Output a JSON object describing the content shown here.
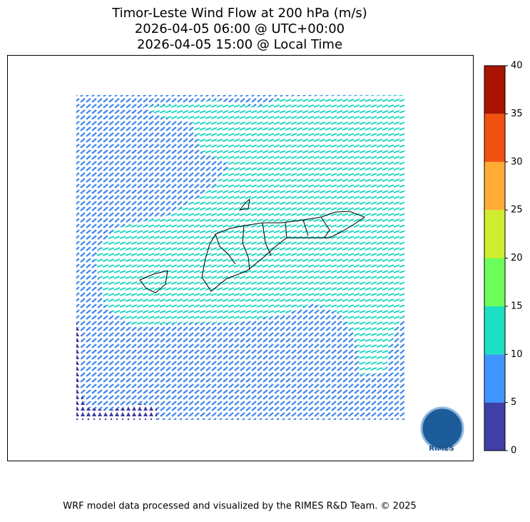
{
  "title": [
    "Timor-Leste Wind Flow at 200 hPa (m/s)",
    "2026-04-05 06:00 @ UTC+00:00",
    "2026-04-05 15:00 @ Local Time"
  ],
  "colorbar": {
    "ticks": [
      0,
      5,
      10,
      15,
      20,
      25,
      30,
      35,
      40
    ],
    "colors": [
      "#3f3fa6",
      "#3f96ff",
      "#1be0c4",
      "#6cff5a",
      "#cfee2f",
      "#ffad35",
      "#f0510f",
      "#a81400"
    ]
  },
  "logo": "RIMES",
  "footer": "WRF model data processed and visualized by the RIMES R&D Team. © 2025"
}
